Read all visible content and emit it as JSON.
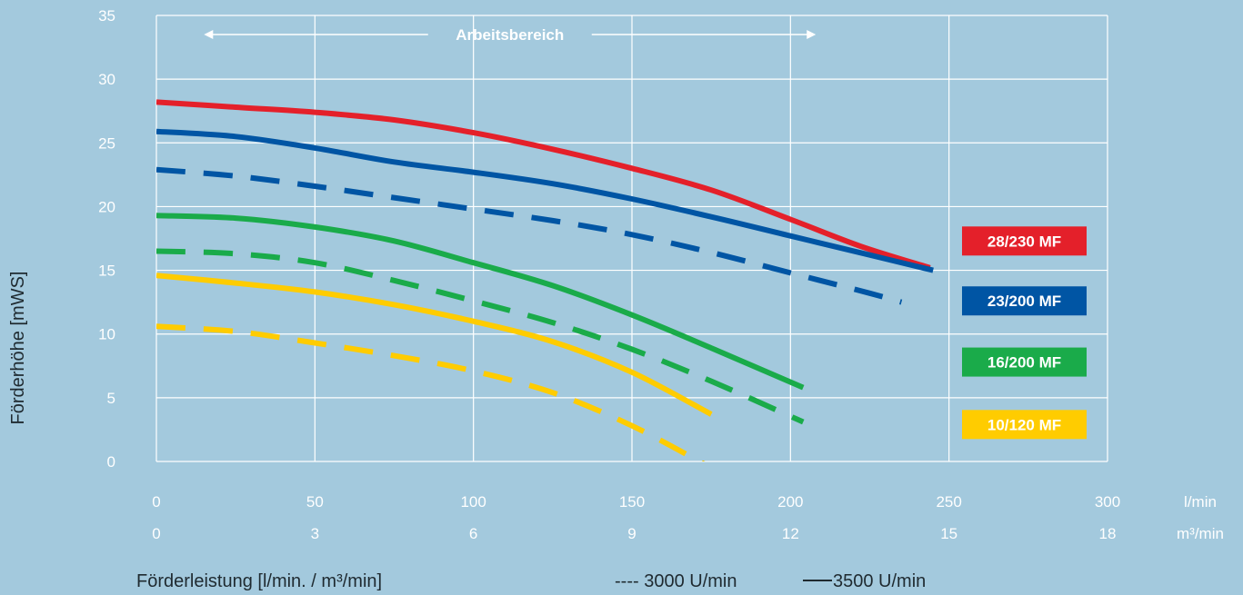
{
  "chart_data": {
    "type": "line",
    "ylabel": "Förderhöhe [mWS]",
    "xlabel": "Förderleistung [l/min. / m³/min]",
    "xlim": [
      0,
      300
    ],
    "ylim": [
      0,
      35
    ],
    "x_ticks": [
      0,
      50,
      100,
      150,
      200,
      250,
      300
    ],
    "x_tick_labels": [
      "0",
      "50",
      "100",
      "150",
      "200",
      "250",
      "300"
    ],
    "x_unit": "l/min",
    "x2_tick_labels": [
      "0",
      "3",
      "6",
      "9",
      "12",
      "15",
      "18"
    ],
    "x2_unit": "m³/min",
    "y_ticks": [
      0,
      5,
      10,
      15,
      20,
      25,
      30,
      35
    ],
    "grid": true,
    "annotation": {
      "label": "Arbeitsbereich",
      "x_start": 15,
      "x_end": 208,
      "y": 33.5
    },
    "legend_items": [
      {
        "label": "---- 3000 U/min",
        "style": "dashed"
      },
      {
        "label": "3500 U/min",
        "style": "solid"
      }
    ],
    "series": [
      {
        "name": "28/230 MF",
        "color": "#e4202a",
        "rpm": 3500,
        "style": "solid",
        "x": [
          0,
          25,
          50,
          75,
          100,
          125,
          150,
          175,
          200,
          222,
          244
        ],
        "y": [
          28.2,
          27.8,
          27.4,
          26.8,
          25.8,
          24.5,
          23.0,
          21.3,
          19.0,
          16.9,
          15.2
        ]
      },
      {
        "name": "23/200 MF",
        "color": "#0055a4",
        "rpm": 3500,
        "style": "solid",
        "x": [
          0,
          25,
          50,
          75,
          100,
          125,
          150,
          175,
          200,
          225,
          245
        ],
        "y": [
          25.9,
          25.5,
          24.6,
          23.5,
          22.7,
          21.8,
          20.6,
          19.2,
          17.7,
          16.2,
          15.0
        ]
      },
      {
        "name": "23/200 MF",
        "color": "#0055a4",
        "rpm": 3000,
        "style": "dashed",
        "x": [
          0,
          25,
          50,
          75,
          100,
          125,
          150,
          175,
          200,
          225,
          235
        ],
        "y": [
          22.9,
          22.4,
          21.6,
          20.7,
          19.8,
          18.9,
          17.8,
          16.4,
          14.8,
          13.2,
          12.5
        ]
      },
      {
        "name": "16/200 MF",
        "color": "#1aab4a",
        "rpm": 3500,
        "style": "solid",
        "x": [
          0,
          25,
          50,
          75,
          100,
          125,
          150,
          175,
          204
        ],
        "y": [
          19.3,
          19.1,
          18.4,
          17.3,
          15.6,
          13.8,
          11.5,
          8.9,
          5.8
        ]
      },
      {
        "name": "16/200 MF",
        "color": "#1aab4a",
        "rpm": 3000,
        "style": "dashed",
        "x": [
          0,
          25,
          50,
          75,
          100,
          125,
          150,
          175,
          204
        ],
        "y": [
          16.5,
          16.3,
          15.6,
          14.2,
          12.6,
          10.9,
          8.8,
          6.3,
          3.1
        ]
      },
      {
        "name": "10/120 MF",
        "color": "#ffcc00",
        "rpm": 3500,
        "style": "solid",
        "x": [
          0,
          25,
          50,
          75,
          100,
          125,
          150,
          175
        ],
        "y": [
          14.6,
          14.0,
          13.3,
          12.3,
          11.0,
          9.4,
          7.0,
          3.7
        ]
      },
      {
        "name": "10/120 MF",
        "color": "#ffcc00",
        "rpm": 3000,
        "style": "dashed",
        "x": [
          0,
          25,
          50,
          75,
          100,
          125,
          150,
          175
        ],
        "y": [
          10.6,
          10.2,
          9.3,
          8.3,
          7.1,
          5.4,
          2.8,
          -0.5
        ]
      }
    ],
    "badges": [
      {
        "label": "28/230 MF",
        "color": "#e4202a",
        "y": 17.3
      },
      {
        "label": "23/200 MF",
        "color": "#0055a4",
        "y": 12.6
      },
      {
        "label": "16/200 MF",
        "color": "#1aab4a",
        "y": 7.8
      },
      {
        "label": "10/120 MF",
        "color": "#ffcc00",
        "y": 2.9
      }
    ]
  }
}
